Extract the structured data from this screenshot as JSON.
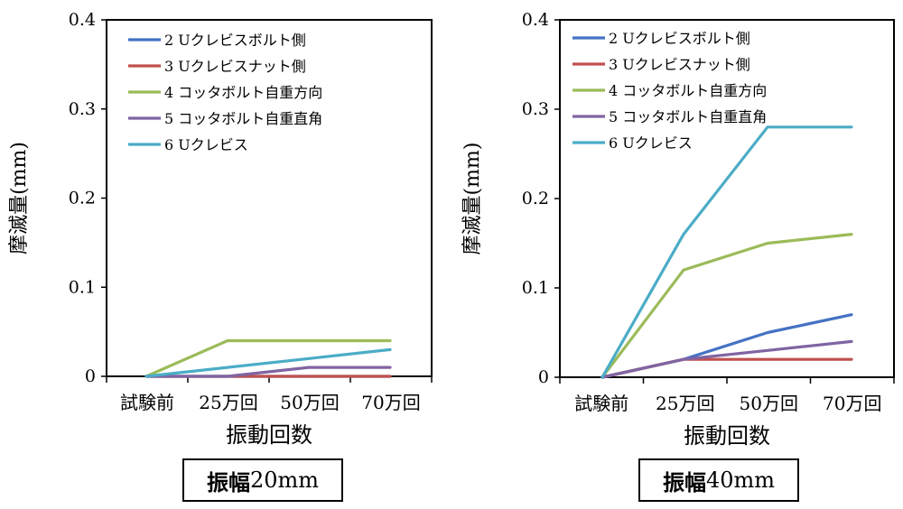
{
  "chart_data": [
    {
      "type": "line",
      "categories": [
        "試験前",
        "25万回",
        "50万回",
        "70万回"
      ],
      "xlabel": "振動回数",
      "ylabel": "摩滅量(mm)",
      "ylim": [
        0,
        0.4
      ],
      "yticks": [
        "0",
        "0.1",
        "0.2",
        "0.3",
        "0.4"
      ],
      "legend_position": "top-left",
      "series": [
        {
          "name": "2 Uクレビスボルト側",
          "color": "#4472C4",
          "values": [
            0,
            0,
            0,
            0
          ]
        },
        {
          "name": "3 Uクレビスナット側",
          "color": "#C0504D",
          "values": [
            0,
            0,
            0,
            0
          ]
        },
        {
          "name": "4 コッタボルト自重方向",
          "color": "#9BBB59",
          "values": [
            0,
            0.04,
            0.04,
            0.04
          ]
        },
        {
          "name": "5 コッタボルト自重直角",
          "color": "#8064A2",
          "values": [
            0,
            0,
            0.01,
            0.01
          ]
        },
        {
          "name": "6 Uクレビス",
          "color": "#4BACC6",
          "values": [
            0,
            0.01,
            0.02,
            0.03
          ]
        }
      ],
      "caption_bold": "振幅",
      "caption_rest": "20mm"
    },
    {
      "type": "line",
      "categories": [
        "試験前",
        "25万回",
        "50万回",
        "70万回"
      ],
      "xlabel": "振動回数",
      "ylabel": "摩滅量(mm)",
      "ylim": [
        0,
        0.4
      ],
      "yticks": [
        "0",
        "0.1",
        "0.2",
        "0.3",
        "0.4"
      ],
      "legend_position": "top-left",
      "series": [
        {
          "name": "2 Uクレビスボルト側",
          "color": "#4472C4",
          "values": [
            0,
            0.02,
            0.05,
            0.07
          ]
        },
        {
          "name": "3 Uクレビスナット側",
          "color": "#C0504D",
          "values": [
            0,
            0.02,
            0.02,
            0.02
          ]
        },
        {
          "name": "4 コッタボルト自重方向",
          "color": "#9BBB59",
          "values": [
            0,
            0.12,
            0.15,
            0.16
          ]
        },
        {
          "name": "5 コッタボルト自重直角",
          "color": "#8064A2",
          "values": [
            0,
            0.02,
            0.03,
            0.04
          ]
        },
        {
          "name": "6 Uクレビス",
          "color": "#4BACC6",
          "values": [
            0,
            0.16,
            0.28,
            0.28
          ]
        }
      ],
      "caption_bold": "振幅",
      "caption_rest": "40mm"
    }
  ]
}
